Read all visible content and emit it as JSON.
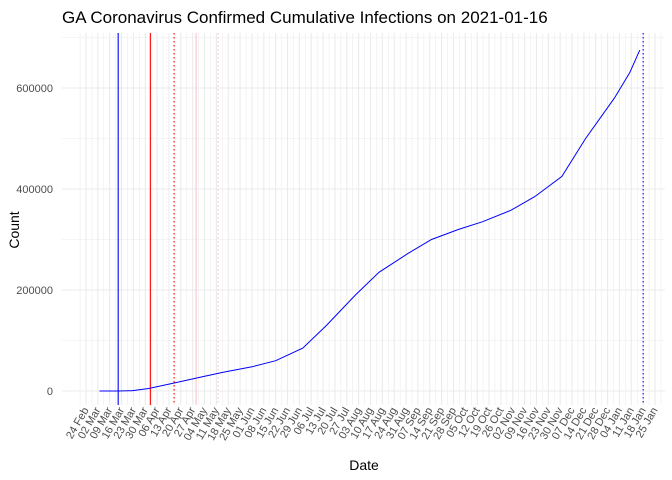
{
  "chart_data": {
    "type": "line",
    "title": "GA Coronavirus Confirmed Cumulative Infections on 2021-01-16",
    "xlabel": "Date",
    "ylabel": "Count",
    "xlim": [
      "2020-02-24",
      "2021-01-25"
    ],
    "ylim": [
      -40000,
      710000
    ],
    "y_ticks": [
      0,
      200000,
      400000,
      600000
    ],
    "y_tick_labels": [
      "0",
      "200000",
      "400000",
      "600000"
    ],
    "x_tick_labels": [
      "24 Feb",
      "02 Mar",
      "09 Mar",
      "16 Mar",
      "23 Mar",
      "30 Mar",
      "06 Apr",
      "13 Apr",
      "20 Apr",
      "27 Apr",
      "04 May",
      "11 May",
      "18 May",
      "25 May",
      "01 Jun",
      "08 Jun",
      "15 Jun",
      "22 Jun",
      "29 Jun",
      "06 Jul",
      "13 Jul",
      "20 Jul",
      "27 Jul",
      "03 Aug",
      "10 Aug",
      "17 Aug",
      "24 Aug",
      "31 Aug",
      "07 Sep",
      "14 Sep",
      "21 Sep",
      "28 Sep",
      "05 Oct",
      "12 Oct",
      "19 Oct",
      "26 Oct",
      "02 Nov",
      "09 Nov",
      "16 Nov",
      "23 Nov",
      "30 Nov",
      "07 Dec",
      "14 Dec",
      "21 Dec",
      "28 Dec",
      "04 Jan",
      "11 Jan",
      "18 Jan",
      "25 Jan"
    ],
    "grid": true,
    "series": [
      {
        "color": "#0000ff",
        "x": [
          "2020-03-03",
          "2020-03-14",
          "2020-03-22",
          "2020-04-01",
          "2020-04-15",
          "2020-05-01",
          "2020-05-15",
          "2020-06-01",
          "2020-06-15",
          "2020-07-01",
          "2020-07-15",
          "2020-08-01",
          "2020-08-15",
          "2020-09-01",
          "2020-09-15",
          "2020-10-01",
          "2020-10-15",
          "2020-11-01",
          "2020-11-15",
          "2020-12-01",
          "2020-12-15",
          "2021-01-01",
          "2021-01-10",
          "2021-01-16"
        ],
        "y": [
          0,
          0,
          500,
          5000,
          15000,
          27000,
          37000,
          48000,
          60000,
          85000,
          130000,
          190000,
          235000,
          272000,
          300000,
          320000,
          335000,
          358000,
          385000,
          425000,
          500000,
          580000,
          630000,
          675000
        ]
      }
    ],
    "vlines": [
      {
        "date": "2020-03-14",
        "color": "#0000ff",
        "style": "solid"
      },
      {
        "date": "2020-04-02",
        "color": "#ff0000",
        "style": "solid"
      },
      {
        "date": "2020-04-16",
        "color": "#ff0000",
        "style": "dotted"
      },
      {
        "date": "2020-04-29",
        "color": "#ffc0cb",
        "style": "solid"
      },
      {
        "date": "2020-05-12",
        "color": "#ffc0cb",
        "style": "dotted"
      },
      {
        "date": "2021-01-18",
        "color": "#0000ff",
        "style": "dotted"
      }
    ]
  }
}
